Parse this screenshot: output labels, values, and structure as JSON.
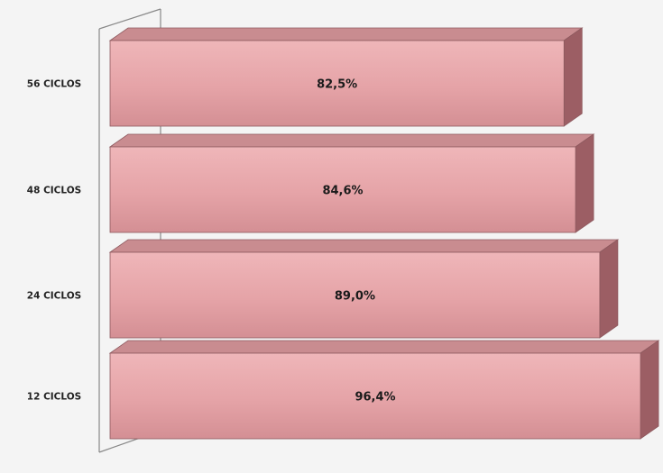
{
  "chart_data": {
    "type": "bar",
    "orientation": "horizontal",
    "style": "3d",
    "categories": [
      "12 CICLOS",
      "24 CICLOS",
      "48 CICLOS",
      "56 CICLOS"
    ],
    "values": [
      96.4,
      89.0,
      84.6,
      82.5
    ],
    "value_labels": [
      "96,4%",
      "89,0%",
      "84,6%",
      "82,5%"
    ],
    "title": "",
    "xlabel": "",
    "ylabel": "",
    "xlim": [
      0,
      100
    ],
    "grid": false,
    "legend": "none",
    "colors": {
      "bar_front": "#e5a3a7",
      "bar_top": "#c98c90",
      "bar_side": "#9c5e64",
      "bar_outline": "#8e5a5f",
      "axis_wall": "#888888",
      "background": "#f4f4f4"
    }
  }
}
